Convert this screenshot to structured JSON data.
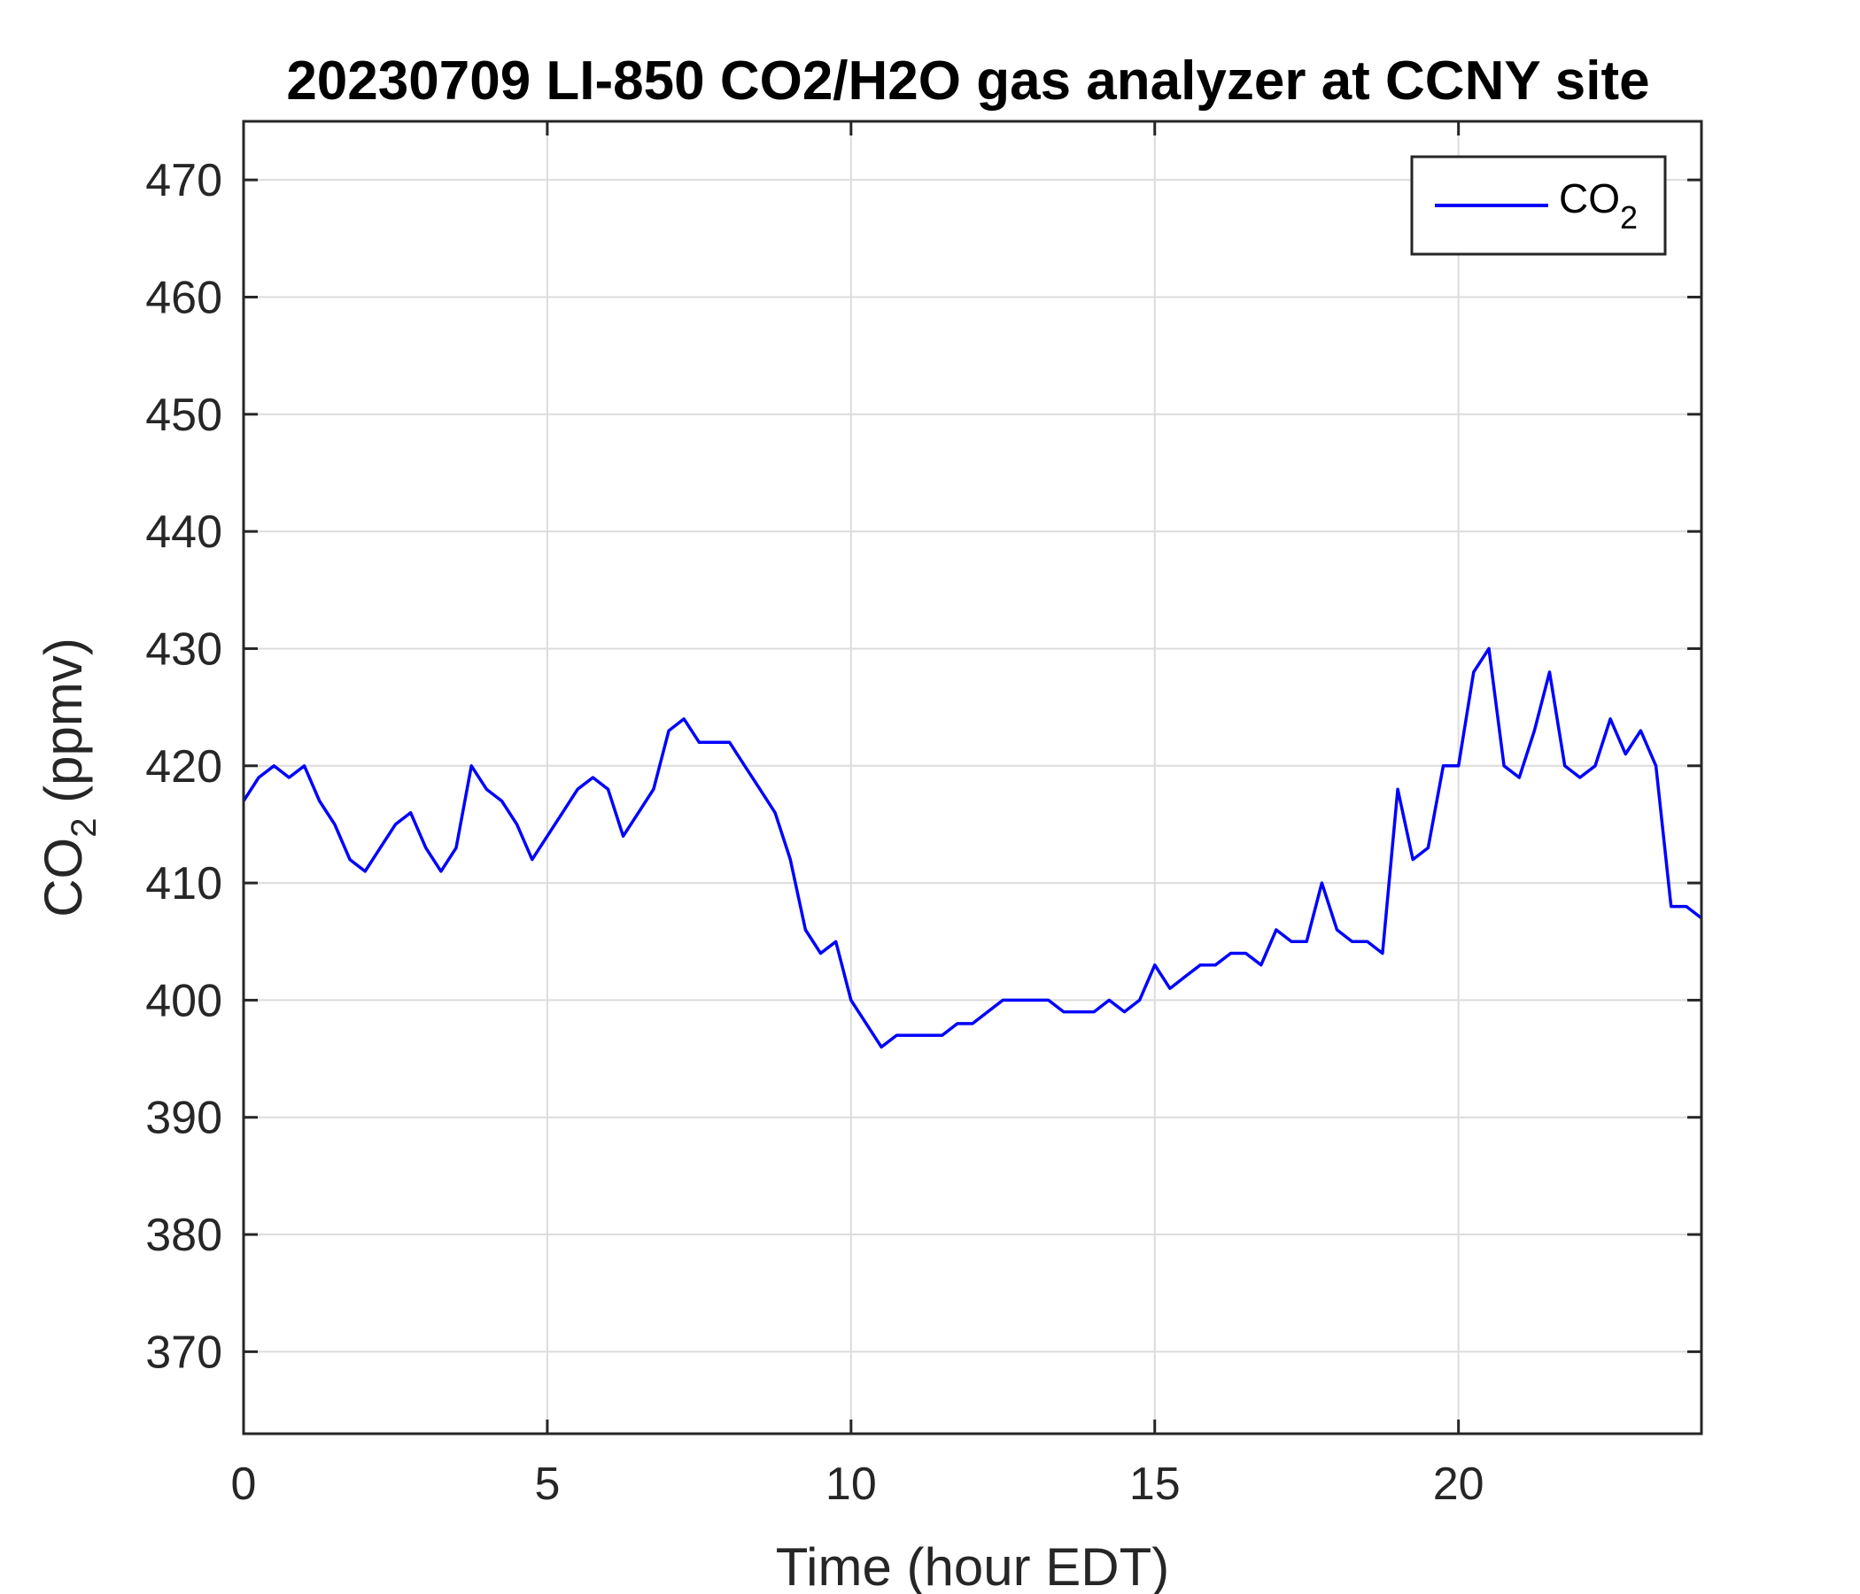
{
  "chart_data": {
    "type": "line",
    "title": "20230709 LI-850 CO2/H2O gas analyzer at CCNY site",
    "xlabel": "Time (hour EDT)",
    "ylabel_main": "CO",
    "ylabel_sub": "2",
    "ylabel_rest": " (ppmv)",
    "xlim": [
      0,
      24
    ],
    "ylim": [
      363,
      475
    ],
    "xticks": [
      0,
      5,
      10,
      15,
      20
    ],
    "xtick_labels": [
      "0",
      "5",
      "10",
      "15",
      "20"
    ],
    "yticks": [
      370,
      380,
      390,
      400,
      410,
      420,
      430,
      440,
      450,
      460,
      470
    ],
    "ytick_labels": [
      "370",
      "380",
      "390",
      "400",
      "410",
      "420",
      "430",
      "440",
      "450",
      "460",
      "470"
    ],
    "grid": true,
    "legend_position": "top-right",
    "series": [
      {
        "legend_main": "CO",
        "legend_sub": "2",
        "color": "#0000ff",
        "x": [
          0,
          0.25,
          0.5,
          0.75,
          1.0,
          1.25,
          1.5,
          1.75,
          2.0,
          2.25,
          2.5,
          2.75,
          3.0,
          3.25,
          3.5,
          3.75,
          4.0,
          4.25,
          4.5,
          4.75,
          5.0,
          5.25,
          5.5,
          5.75,
          6.0,
          6.25,
          6.5,
          6.75,
          7.0,
          7.25,
          7.5,
          7.75,
          8.0,
          8.25,
          8.5,
          8.75,
          9.0,
          9.25,
          9.5,
          9.75,
          10.0,
          10.25,
          10.5,
          10.75,
          11.0,
          11.25,
          11.5,
          11.75,
          12.0,
          12.25,
          12.5,
          12.75,
          13.0,
          13.25,
          13.5,
          13.75,
          14.0,
          14.25,
          14.5,
          14.75,
          15.0,
          15.25,
          15.5,
          15.75,
          16.0,
          16.25,
          16.5,
          16.75,
          17.0,
          17.25,
          17.5,
          17.75,
          18.0,
          18.25,
          18.5,
          18.75,
          19.0,
          19.25,
          19.5,
          19.75,
          20.0,
          20.25,
          20.5,
          20.75,
          21.0,
          21.25,
          21.5,
          21.75,
          22.0,
          22.25,
          22.5,
          22.75,
          23.0,
          23.25,
          23.5,
          23.75,
          24.0
        ],
        "y": [
          417,
          419,
          420,
          419,
          420,
          417,
          415,
          412,
          411,
          413,
          415,
          416,
          413,
          411,
          413,
          420,
          418,
          417,
          415,
          412,
          414,
          416,
          418,
          419,
          418,
          414,
          416,
          418,
          423,
          424,
          422,
          422,
          422,
          420,
          418,
          416,
          412,
          406,
          404,
          405,
          400,
          398,
          396,
          397,
          397,
          397,
          397,
          398,
          398,
          399,
          400,
          400,
          400,
          400,
          399,
          399,
          399,
          400,
          399,
          400,
          403,
          401,
          402,
          403,
          403,
          404,
          404,
          403,
          406,
          405,
          405,
          410,
          406,
          405,
          405,
          404,
          418,
          412,
          413,
          420,
          420,
          428,
          430,
          420,
          419,
          423,
          428,
          420,
          419,
          420,
          424,
          421,
          423,
          420,
          408,
          408,
          407
        ]
      }
    ]
  }
}
